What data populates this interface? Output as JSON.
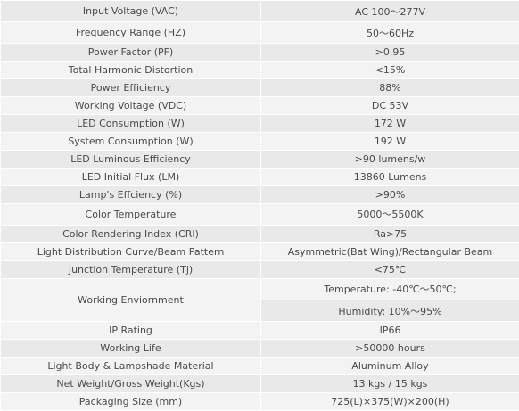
{
  "table": {
    "rows": [
      [
        "Input Voltage (VAC)",
        "AC 100～277V"
      ],
      [
        "Frequency Range (HZ)",
        "50～60Hz"
      ],
      [
        "Power Factor (PF)",
        ">0.95"
      ],
      [
        "Total Harmonic Distortion",
        "<15%"
      ],
      [
        "Power Efficiency",
        "88%"
      ],
      [
        "Working Voltage (VDC)",
        "DC 53V"
      ],
      [
        "LED Consumption (W)",
        "172 W"
      ],
      [
        "System Consumption (W)",
        "192 W"
      ],
      [
        "LED Luminous Efficiency",
        ">90 lumens/w"
      ],
      [
        "LED Initial Flux (LM)",
        "13860 Lumens"
      ],
      [
        "Lamp's Effciency (%)",
        ">90%"
      ],
      [
        "Color Temperature",
        "5000～5500K"
      ],
      [
        "Color Rendering Index (CRI)",
        "Ra>75"
      ],
      [
        "Light Distribution Curve/Beam Pattern",
        "Asymmetric(Bat Wing)/Rectangular Beam"
      ],
      [
        "Junction Temperature (Tj)",
        "<75℃"
      ],
      [
        "Working Enviornment",
        "Temperature: -40℃～50℃;",
        "Humidity: 10%～95%"
      ],
      [
        "IP Rating",
        "IP66"
      ],
      [
        "Working Life",
        ">50000 hours"
      ],
      [
        "Light Body & Lampshade Material",
        "Aluminum Alloy"
      ],
      [
        "Net Weight/Gross Weight(Kgs)",
        "13 kgs / 15 kgs"
      ],
      [
        "Packaging Size (mm)",
        "725(L)×375(W)×200(H)"
      ]
    ]
  }
}
